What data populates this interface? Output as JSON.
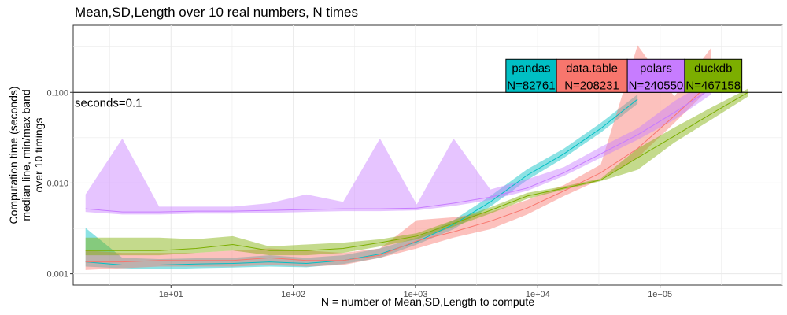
{
  "chart_data": {
    "type": "line",
    "title": "Mean,SD,Length over 10 real numbers, N times",
    "xlabel": "N = number of Mean,SD,Length to compute",
    "ylabel_lines": [
      "Computation time (seconds)",
      "median line, min/max band",
      "over 10 timings"
    ],
    "x_scale": "log10",
    "y_scale": "log10",
    "xlim": [
      1.585,
      1000000
    ],
    "ylim": [
      0.00075,
      0.55
    ],
    "x_ticks": [
      10,
      100,
      1000,
      10000,
      100000
    ],
    "x_tick_labels": [
      "1e+01",
      "1e+02",
      "1e+03",
      "1e+04",
      "1e+05"
    ],
    "y_ticks": [
      0.001,
      0.01,
      0.1
    ],
    "y_tick_labels": [
      "0.001",
      "0.010",
      "0.100"
    ],
    "grid": true,
    "hline": {
      "y": 0.1,
      "label": "seconds=0.1"
    },
    "series": [
      {
        "name": "pandas",
        "color": "#00BFC4",
        "label_text": "N=82761",
        "x": [
          2,
          4,
          8,
          16,
          32,
          64,
          128,
          256,
          512,
          1024,
          2048,
          4096,
          8192,
          16384,
          32768,
          65536
        ],
        "median": [
          0.00135,
          0.00125,
          0.00125,
          0.00128,
          0.0013,
          0.00135,
          0.0013,
          0.0014,
          0.00165,
          0.00225,
          0.0035,
          0.0062,
          0.0122,
          0.021,
          0.04,
          0.084
        ],
        "min": [
          0.0012,
          0.00115,
          0.00112,
          0.00115,
          0.00117,
          0.0012,
          0.00118,
          0.00128,
          0.0015,
          0.0021,
          0.0031,
          0.0055,
          0.0108,
          0.019,
          0.036,
          0.075
        ],
        "max": [
          0.0032,
          0.0015,
          0.00145,
          0.00148,
          0.0015,
          0.0016,
          0.0015,
          0.0016,
          0.0019,
          0.0025,
          0.0039,
          0.0072,
          0.0142,
          0.024,
          0.046,
          0.095
        ]
      },
      {
        "name": "data.table",
        "color": "#F8766D",
        "label_text": "N=208231",
        "x": [
          2,
          4,
          8,
          16,
          32,
          64,
          128,
          256,
          512,
          1024,
          2048,
          4096,
          8192,
          16384,
          32768,
          65536,
          131072,
          262144
        ],
        "median": [
          0.00135,
          0.00135,
          0.0014,
          0.0014,
          0.0014,
          0.0015,
          0.0014,
          0.0014,
          0.0016,
          0.0023,
          0.0029,
          0.0038,
          0.0053,
          0.0082,
          0.013,
          0.024,
          0.055,
          0.13
        ],
        "min": [
          0.0011,
          0.00115,
          0.0012,
          0.0012,
          0.0012,
          0.00125,
          0.0012,
          0.00125,
          0.0015,
          0.0019,
          0.0025,
          0.0031,
          0.0045,
          0.0072,
          0.011,
          0.019,
          0.046,
          0.115
        ],
        "max": [
          0.0018,
          0.0017,
          0.0017,
          0.0017,
          0.0018,
          0.0019,
          0.0018,
          0.0017,
          0.0019,
          0.0039,
          0.0042,
          0.0048,
          0.0065,
          0.0095,
          0.016,
          0.33,
          0.09,
          0.31
        ]
      },
      {
        "name": "polars",
        "color": "#C77CFF",
        "label_text": "N=240550",
        "x": [
          2,
          4,
          8,
          16,
          32,
          64,
          128,
          256,
          512,
          1024,
          2048,
          4096,
          8192,
          16384,
          32768,
          65536,
          131072,
          262144
        ],
        "median": [
          0.0052,
          0.0048,
          0.0048,
          0.0049,
          0.0049,
          0.005,
          0.0051,
          0.0052,
          0.0052,
          0.0053,
          0.006,
          0.007,
          0.0088,
          0.013,
          0.021,
          0.034,
          0.06,
          0.11
        ],
        "min": [
          0.0048,
          0.0045,
          0.0045,
          0.0046,
          0.0046,
          0.0047,
          0.0048,
          0.0049,
          0.0049,
          0.005,
          0.0056,
          0.0065,
          0.0082,
          0.012,
          0.019,
          0.03,
          0.05,
          0.095
        ],
        "max": [
          0.0075,
          0.031,
          0.0055,
          0.0055,
          0.0055,
          0.006,
          0.0075,
          0.0062,
          0.031,
          0.0058,
          0.031,
          0.0085,
          0.011,
          0.015,
          0.025,
          0.04,
          0.08,
          0.14
        ]
      },
      {
        "name": "duckdb",
        "color": "#7CAE00",
        "label_text": "N=467158",
        "x": [
          2,
          4,
          8,
          16,
          32,
          64,
          128,
          256,
          512,
          1024,
          2048,
          4096,
          8192,
          16384,
          32768,
          65536,
          131072,
          262144,
          524288
        ],
        "median": [
          0.0018,
          0.0018,
          0.0018,
          0.0019,
          0.0021,
          0.0018,
          0.0018,
          0.0019,
          0.0022,
          0.0026,
          0.0036,
          0.005,
          0.0072,
          0.0088,
          0.0108,
          0.019,
          0.033,
          0.058,
          0.1
        ],
        "min": [
          0.0016,
          0.0016,
          0.0016,
          0.0017,
          0.0018,
          0.0016,
          0.0016,
          0.0017,
          0.002,
          0.0024,
          0.0033,
          0.0046,
          0.0067,
          0.0085,
          0.0105,
          0.014,
          0.028,
          0.05,
          0.09
        ],
        "max": [
          0.0025,
          0.0025,
          0.0025,
          0.0024,
          0.0026,
          0.002,
          0.0021,
          0.0022,
          0.0024,
          0.0028,
          0.0039,
          0.0054,
          0.0078,
          0.0092,
          0.0112,
          0.024,
          0.041,
          0.068,
          0.11
        ]
      }
    ]
  }
}
